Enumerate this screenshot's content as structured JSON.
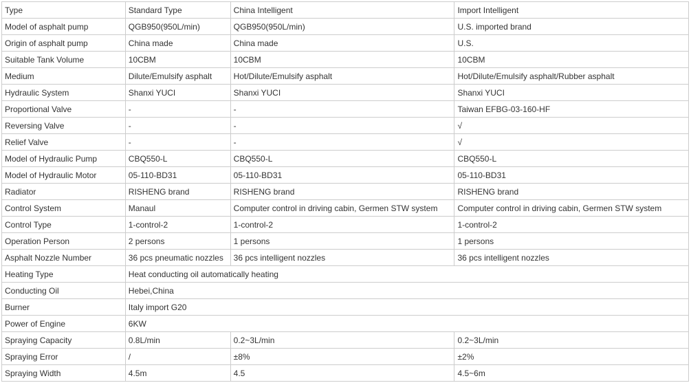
{
  "rows": [
    {
      "label": "Type",
      "c1": "Standard Type",
      "c2": "China Intelligent",
      "c3": "Import Intelligent"
    },
    {
      "label": "Model of asphalt pump",
      "c1": "QGB950(950L/min)",
      "c2": "QGB950(950L/min)",
      "c3": "U.S. imported brand"
    },
    {
      "label": "Origin of asphalt pump",
      "c1": "China made",
      "c2": "China made",
      "c3": "U.S."
    },
    {
      "label": "Suitable Tank Volume",
      "c1": "10CBM",
      "c2": "10CBM",
      "c3": "10CBM"
    },
    {
      "label": "Medium",
      "c1": "Dilute/Emulsify asphalt",
      "c2": "Hot/Dilute/Emulsify asphalt",
      "c3": "Hot/Dilute/Emulsify asphalt/Rubber asphalt"
    },
    {
      "label": "Hydraulic System",
      "c1": "Shanxi YUCI",
      "c2": "Shanxi YUCI",
      "c3": "Shanxi YUCI"
    },
    {
      "label": "Proportional Valve",
      "c1": "-",
      "c2": "-",
      "c3": "Taiwan EFBG-03-160-HF"
    },
    {
      "label": "Reversing Valve",
      "c1": "-",
      "c2": "-",
      "c3": "√"
    },
    {
      "label": "Relief Valve",
      "c1": "-",
      "c2": "-",
      "c3": "√"
    },
    {
      "label": "Model of Hydraulic Pump",
      "c1": "CBQ550-L",
      "c2": "CBQ550-L",
      "c3": "CBQ550-L"
    },
    {
      "label": "Model of Hydraulic Motor",
      "c1": "05-110-BD31",
      "c2": "05-110-BD31",
      "c3": "05-110-BD31"
    },
    {
      "label": "Radiator",
      "c1": "RISHENG brand",
      "c2": "RISHENG brand",
      "c3": "RISHENG brand"
    },
    {
      "label": "Control System",
      "c1": "Manaul",
      "c2": "Computer control in driving cabin, Germen STW system",
      "c3": "Computer control in driving cabin, Germen STW system"
    },
    {
      "label": "Control Type",
      "c1": "1-control-2",
      "c2": "1-control-2",
      "c3": "1-control-2"
    },
    {
      "label": "Operation Person",
      "c1": "2 persons",
      "c2": "1 persons",
      "c3": "1 persons"
    },
    {
      "label": "Asphalt Nozzle Number",
      "c1": "36 pcs pneumatic nozzles",
      "c2": "36 pcs intelligent nozzles",
      "c3": "36 pcs intelligent nozzles"
    },
    {
      "label": "Heating Type",
      "merged": "Heat conducting oil automatically heating"
    },
    {
      "label": "Conducting Oil",
      "merged": "Hebei,China"
    },
    {
      "label": "Burner",
      "merged": "Italy import G20"
    },
    {
      "label": "Power of Engine",
      "merged": "6KW"
    },
    {
      "label": "Spraying Capacity",
      "c1": "0.8L/min",
      "c2": "0.2~3L/min",
      "c3": "0.2~3L/min"
    },
    {
      "label": "Spraying Error",
      "c1": "/",
      "c2": "±8%",
      "c3": "±2%"
    },
    {
      "label": "Spraying Width",
      "c1": "4.5m",
      "c2": "4.5",
      "c3": "4.5~6m"
    }
  ]
}
